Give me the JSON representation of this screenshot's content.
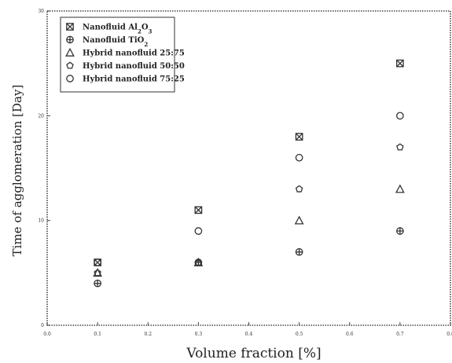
{
  "chart_data": {
    "type": "scatter",
    "title": "",
    "xlabel": "Volume fraction [%]",
    "ylabel": "Time of agglomeration [Day]",
    "xlim": [
      0.0,
      0.8
    ],
    "ylim": [
      0,
      30
    ],
    "xticks": [
      "0.0",
      "0.1",
      "0.2",
      "0.3",
      "0.4",
      "0.5",
      "0.6",
      "0.7",
      "0.8"
    ],
    "yticks": [
      "0",
      "10",
      "20",
      "30"
    ],
    "legend_position": "top-left",
    "series": [
      {
        "name": "Nanofluid Al2O3",
        "marker": "square-x",
        "x": [
          0.1,
          0.3,
          0.5,
          0.7
        ],
        "y": [
          6,
          11,
          18,
          25
        ]
      },
      {
        "name": "Nanofluid TiO2",
        "marker": "circle-plus",
        "x": [
          0.1,
          0.3,
          0.5,
          0.7
        ],
        "y": [
          4,
          6,
          7,
          9
        ]
      },
      {
        "name": "Hybrid nanofluid 25:75",
        "marker": "triangle",
        "x": [
          0.1,
          0.3,
          0.5,
          0.7
        ],
        "y": [
          5,
          6,
          10,
          13
        ]
      },
      {
        "name": "Hybrid nanofluid 50:50",
        "marker": "pentagon",
        "x": [
          0.1,
          0.3,
          0.5,
          0.7
        ],
        "y": [
          5,
          6,
          13,
          17
        ]
      },
      {
        "name": "Hybrid nanofluid 75:25",
        "marker": "circle",
        "x": [
          0.1,
          0.3,
          0.5,
          0.7
        ],
        "y": [
          6,
          9,
          16,
          20
        ]
      }
    ]
  },
  "legend": {
    "items": [
      {
        "main": "Nanofluid Al",
        "sub": "2",
        "tail": "O",
        "sub2": "3"
      },
      {
        "main": "Nanofluid TiO",
        "sub": "2",
        "tail": "",
        "sub2": ""
      },
      {
        "main": "Hybrid nanofluid 25:75",
        "sub": "",
        "tail": "",
        "sub2": ""
      },
      {
        "main": "Hybrid nanofluid 50:50",
        "sub": "",
        "tail": "",
        "sub2": ""
      },
      {
        "main": "Hybrid nanofluid 75:25",
        "sub": "",
        "tail": "",
        "sub2": ""
      }
    ]
  }
}
